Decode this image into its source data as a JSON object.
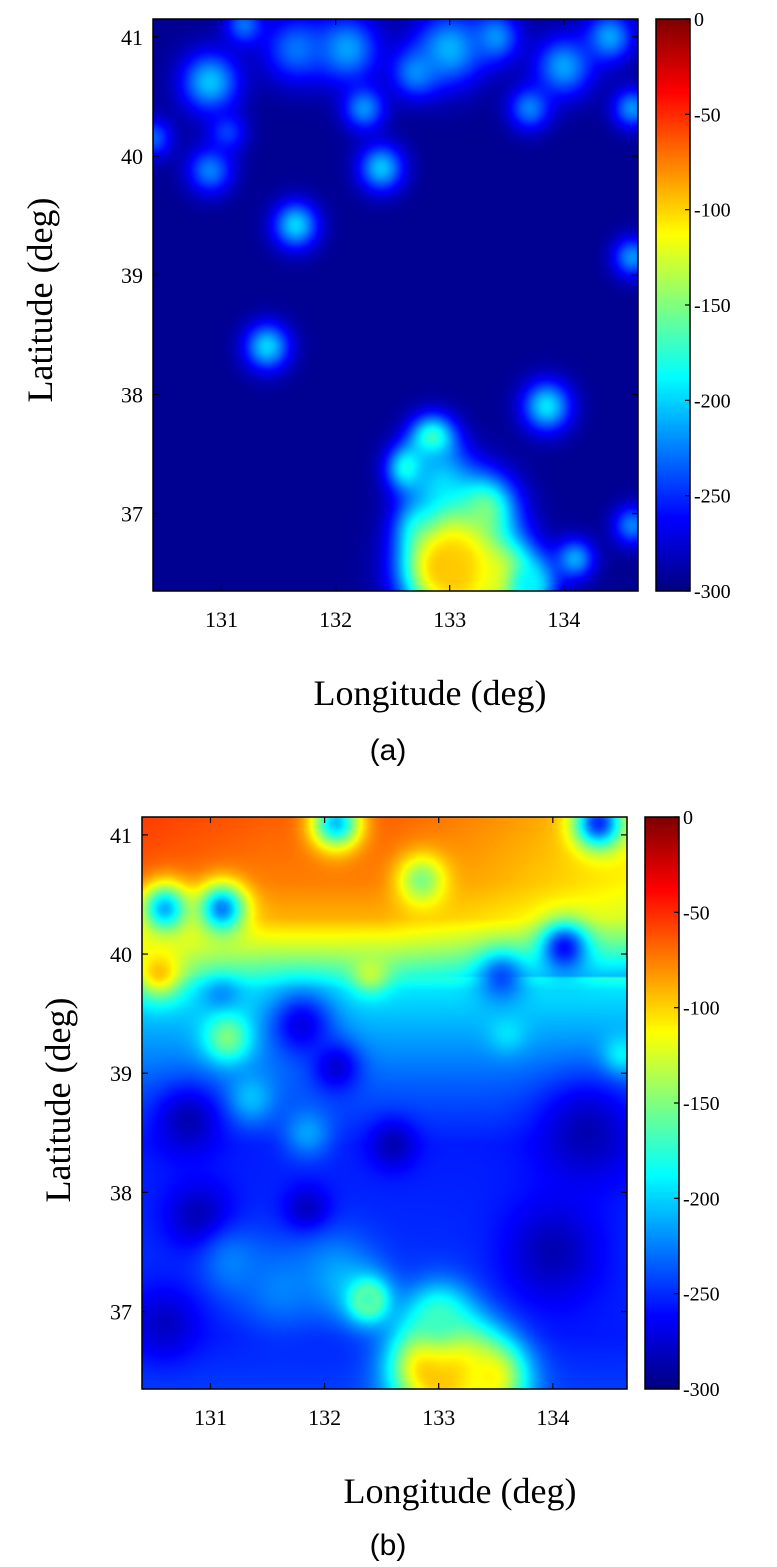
{
  "colors": {
    "low": "#00007f",
    "high": "#7f0000",
    "colormap": "jet"
  },
  "chart_data": [
    {
      "type": "heatmap",
      "panel_label": "(a)",
      "xlabel": "Longitude (deg)",
      "ylabel": "Latitude (deg)",
      "xlim": [
        130.4,
        134.65
      ],
      "ylim": [
        36.35,
        41.15
      ],
      "x_ticks": [
        131,
        132,
        133,
        134
      ],
      "y_ticks": [
        37,
        38,
        39,
        40,
        41
      ],
      "colorbar": {
        "min": -300,
        "max": 0,
        "ticks": [
          0,
          -50,
          -100,
          -150,
          -200,
          -250,
          -300
        ]
      },
      "background_value": -295,
      "hotspots": [
        {
          "lon": 130.9,
          "lat": 40.62,
          "value": -205,
          "radius": 0.18
        },
        {
          "lon": 130.9,
          "lat": 39.88,
          "value": -225,
          "radius": 0.14
        },
        {
          "lon": 131.65,
          "lat": 39.42,
          "value": -200,
          "radius": 0.14
        },
        {
          "lon": 132.4,
          "lat": 39.9,
          "value": -205,
          "radius": 0.14
        },
        {
          "lon": 131.4,
          "lat": 38.4,
          "value": -200,
          "radius": 0.14
        },
        {
          "lon": 133.85,
          "lat": 37.9,
          "value": -195,
          "radius": 0.15
        },
        {
          "lon": 134.6,
          "lat": 39.15,
          "value": -220,
          "radius": 0.12
        },
        {
          "lon": 134.6,
          "lat": 40.4,
          "value": -220,
          "radius": 0.12
        },
        {
          "lon": 134.6,
          "lat": 36.9,
          "value": -225,
          "radius": 0.12
        },
        {
          "lon": 134.1,
          "lat": 36.62,
          "value": -215,
          "radius": 0.12
        },
        {
          "lon": 130.4,
          "lat": 40.15,
          "value": -235,
          "radius": 0.12
        },
        {
          "lon": 132.25,
          "lat": 40.4,
          "value": -220,
          "radius": 0.13
        },
        {
          "lon": 131.05,
          "lat": 40.2,
          "value": -245,
          "radius": 0.12
        },
        {
          "lon": 131.2,
          "lat": 41.1,
          "value": -230,
          "radius": 0.12
        },
        {
          "lon": 131.65,
          "lat": 40.9,
          "value": -230,
          "radius": 0.2
        },
        {
          "lon": 132.1,
          "lat": 40.9,
          "value": -215,
          "radius": 0.2
        },
        {
          "lon": 132.7,
          "lat": 40.7,
          "value": -225,
          "radius": 0.15
        },
        {
          "lon": 133.0,
          "lat": 40.9,
          "value": -210,
          "radius": 0.22
        },
        {
          "lon": 133.4,
          "lat": 41.0,
          "value": -220,
          "radius": 0.15
        },
        {
          "lon": 133.7,
          "lat": 40.4,
          "value": -225,
          "radius": 0.13
        },
        {
          "lon": 134.0,
          "lat": 40.75,
          "value": -215,
          "radius": 0.18
        },
        {
          "lon": 134.4,
          "lat": 41.0,
          "value": -215,
          "radius": 0.15
        },
        {
          "lon": 132.65,
          "lat": 37.38,
          "value": -160,
          "radius": 0.13
        },
        {
          "lon": 132.85,
          "lat": 37.62,
          "value": -155,
          "radius": 0.14
        },
        {
          "lon": 132.9,
          "lat": 37.3,
          "value": -210,
          "radius": 0.22
        },
        {
          "lon": 133.3,
          "lat": 37.05,
          "value": -165,
          "radius": 0.2
        },
        {
          "lon": 133.0,
          "lat": 36.85,
          "value": -175,
          "radius": 0.22
        },
        {
          "lon": 132.75,
          "lat": 36.9,
          "value": -210,
          "radius": 0.15
        },
        {
          "lon": 133.1,
          "lat": 36.5,
          "value": -85,
          "radius": 0.3
        },
        {
          "lon": 132.95,
          "lat": 36.55,
          "value": -95,
          "radius": 0.22
        },
        {
          "lon": 133.45,
          "lat": 36.45,
          "value": -110,
          "radius": 0.22
        },
        {
          "lon": 133.7,
          "lat": 36.4,
          "value": -190,
          "radius": 0.15
        }
      ]
    },
    {
      "type": "heatmap",
      "panel_label": "(b)",
      "xlabel": "Longitude (deg)",
      "ylabel": "Latitude (deg)",
      "xlim": [
        130.4,
        134.65
      ],
      "ylim": [
        36.35,
        41.15
      ],
      "x_ticks": [
        131,
        132,
        133,
        134
      ],
      "y_ticks": [
        37,
        38,
        39,
        40,
        41
      ],
      "colorbar": {
        "min": -300,
        "max": 0,
        "ticks": [
          0,
          -50,
          -100,
          -150,
          -200,
          -250,
          -300
        ]
      },
      "lat_profile": [
        [
          41.15,
          -65
        ],
        [
          40.6,
          -75
        ],
        [
          40.3,
          -90
        ],
        [
          40.05,
          -130
        ],
        [
          39.7,
          -195
        ],
        [
          39.3,
          -215
        ],
        [
          38.9,
          -235
        ],
        [
          38.4,
          -255
        ],
        [
          37.5,
          -250
        ],
        [
          36.8,
          -255
        ],
        [
          36.35,
          -245
        ]
      ],
      "lon_adjust": [
        [
          130.4,
          10
        ],
        [
          131.5,
          0
        ],
        [
          132.5,
          0
        ],
        [
          133.5,
          -15
        ],
        [
          134.65,
          -35
        ]
      ],
      "hotspots": [
        {
          "lon": 130.6,
          "lat": 40.38,
          "value": -210,
          "radius": 0.15
        },
        {
          "lon": 131.1,
          "lat": 40.38,
          "value": -225,
          "radius": 0.15
        },
        {
          "lon": 132.1,
          "lat": 41.1,
          "value": -205,
          "radius": 0.15
        },
        {
          "lon": 134.4,
          "lat": 41.1,
          "value": -250,
          "radius": 0.15
        },
        {
          "lon": 132.85,
          "lat": 40.62,
          "value": -150,
          "radius": 0.15
        },
        {
          "lon": 132.4,
          "lat": 39.85,
          "value": -130,
          "radius": 0.12
        },
        {
          "lon": 130.55,
          "lat": 39.85,
          "value": -95,
          "radius": 0.15
        },
        {
          "lon": 131.1,
          "lat": 39.62,
          "value": -225,
          "radius": 0.12
        },
        {
          "lon": 131.15,
          "lat": 39.3,
          "value": -150,
          "radius": 0.15
        },
        {
          "lon": 131.8,
          "lat": 39.4,
          "value": -270,
          "radius": 0.2
        },
        {
          "lon": 132.1,
          "lat": 39.05,
          "value": -275,
          "radius": 0.15
        },
        {
          "lon": 133.6,
          "lat": 39.35,
          "value": -195,
          "radius": 0.12
        },
        {
          "lon": 134.1,
          "lat": 40.05,
          "value": -260,
          "radius": 0.15
        },
        {
          "lon": 133.55,
          "lat": 39.8,
          "value": -240,
          "radius": 0.15
        },
        {
          "lon": 134.6,
          "lat": 39.15,
          "value": -185,
          "radius": 0.12
        },
        {
          "lon": 131.35,
          "lat": 38.8,
          "value": -205,
          "radius": 0.15
        },
        {
          "lon": 131.85,
          "lat": 38.5,
          "value": -215,
          "radius": 0.15
        },
        {
          "lon": 131.85,
          "lat": 37.85,
          "value": -285,
          "radius": 0.14
        },
        {
          "lon": 132.6,
          "lat": 38.4,
          "value": -285,
          "radius": 0.14
        },
        {
          "lon": 130.8,
          "lat": 38.6,
          "value": -285,
          "radius": 0.2
        },
        {
          "lon": 130.9,
          "lat": 37.8,
          "value": -285,
          "radius": 0.2
        },
        {
          "lon": 131.6,
          "lat": 37.2,
          "value": -225,
          "radius": 0.25
        },
        {
          "lon": 132.1,
          "lat": 37.3,
          "value": -215,
          "radius": 0.25
        },
        {
          "lon": 131.2,
          "lat": 37.4,
          "value": -225,
          "radius": 0.2
        },
        {
          "lon": 130.6,
          "lat": 36.9,
          "value": -280,
          "radius": 0.2
        },
        {
          "lon": 132.38,
          "lat": 37.1,
          "value": -40,
          "radius": 0.08
        },
        {
          "lon": 132.38,
          "lat": 37.1,
          "value": -170,
          "radius": 0.16
        },
        {
          "lon": 133.1,
          "lat": 36.5,
          "value": -85,
          "radius": 0.3
        },
        {
          "lon": 132.95,
          "lat": 36.55,
          "value": -90,
          "radius": 0.22
        },
        {
          "lon": 133.45,
          "lat": 36.45,
          "value": -110,
          "radius": 0.22
        },
        {
          "lon": 133.0,
          "lat": 36.95,
          "value": -170,
          "radius": 0.2
        },
        {
          "lon": 134.0,
          "lat": 37.5,
          "value": -285,
          "radius": 0.3
        },
        {
          "lon": 134.3,
          "lat": 38.5,
          "value": -285,
          "radius": 0.3
        }
      ]
    }
  ]
}
